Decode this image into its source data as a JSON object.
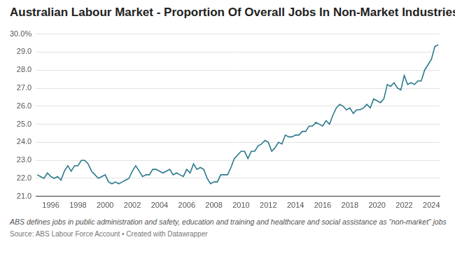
{
  "chart_data": {
    "type": "line",
    "title": "Australian Labour Market - Proportion Of Overall Jobs In Non-Market Industries",
    "note": "ABS defines jobs in public administration and safety, education and training and healthcare and social assistance as “non-market” jobs",
    "source": "Source: ABS Labour Force Account • Created with Datawrapper",
    "x": [
      1995.0,
      1995.25,
      1995.5,
      1995.75,
      1996.0,
      1996.25,
      1996.5,
      1996.75,
      1997.0,
      1997.25,
      1997.5,
      1997.75,
      1998.0,
      1998.25,
      1998.5,
      1998.75,
      1999.0,
      1999.25,
      1999.5,
      1999.75,
      2000.0,
      2000.25,
      2000.5,
      2000.75,
      2001.0,
      2001.25,
      2001.5,
      2001.75,
      2002.0,
      2002.25,
      2002.5,
      2002.75,
      2003.0,
      2003.25,
      2003.5,
      2003.75,
      2004.0,
      2004.25,
      2004.5,
      2004.75,
      2005.0,
      2005.25,
      2005.5,
      2005.75,
      2006.0,
      2006.25,
      2006.5,
      2006.75,
      2007.0,
      2007.25,
      2007.5,
      2007.75,
      2008.0,
      2008.25,
      2008.5,
      2008.75,
      2009.0,
      2009.25,
      2009.5,
      2009.75,
      2010.0,
      2010.25,
      2010.5,
      2010.75,
      2011.0,
      2011.25,
      2011.5,
      2011.75,
      2012.0,
      2012.25,
      2012.5,
      2012.75,
      2013.0,
      2013.25,
      2013.5,
      2013.75,
      2014.0,
      2014.25,
      2014.5,
      2014.75,
      2015.0,
      2015.25,
      2015.5,
      2015.75,
      2016.0,
      2016.25,
      2016.5,
      2016.75,
      2017.0,
      2017.25,
      2017.5,
      2017.75,
      2018.0,
      2018.25,
      2018.5,
      2018.75,
      2019.0,
      2019.25,
      2019.5,
      2019.75,
      2020.0,
      2020.25,
      2020.5,
      2020.75,
      2021.0,
      2021.25,
      2021.5,
      2021.75,
      2022.0,
      2022.25,
      2022.5,
      2022.75,
      2023.0,
      2023.25,
      2023.5,
      2023.75,
      2024.0,
      2024.25,
      2024.5
    ],
    "values": [
      22.2,
      22.1,
      22.0,
      22.3,
      22.1,
      22.0,
      22.1,
      21.9,
      22.4,
      22.7,
      22.4,
      22.7,
      22.7,
      23.0,
      23.0,
      22.8,
      22.4,
      22.2,
      22.0,
      22.1,
      22.2,
      21.8,
      21.7,
      21.8,
      21.7,
      21.8,
      21.9,
      22.0,
      22.4,
      22.7,
      22.4,
      22.1,
      22.2,
      22.2,
      22.5,
      22.5,
      22.4,
      22.3,
      22.4,
      22.5,
      22.2,
      22.3,
      22.2,
      22.1,
      22.5,
      22.3,
      22.8,
      22.5,
      22.6,
      22.5,
      22.0,
      21.7,
      21.8,
      21.8,
      22.2,
      22.2,
      22.2,
      22.6,
      23.1,
      23.3,
      23.5,
      23.5,
      23.1,
      23.5,
      23.5,
      23.8,
      23.9,
      24.1,
      24.0,
      23.5,
      23.7,
      24.0,
      23.9,
      24.4,
      24.3,
      24.3,
      24.4,
      24.4,
      24.6,
      24.6,
      24.9,
      24.9,
      25.1,
      25.0,
      24.9,
      25.2,
      25.0,
      25.5,
      25.9,
      26.1,
      26.0,
      25.8,
      25.9,
      25.6,
      25.8,
      25.8,
      25.9,
      26.1,
      25.9,
      26.4,
      26.3,
      26.2,
      26.4,
      27.2,
      27.1,
      27.3,
      27.0,
      26.9,
      27.7,
      27.2,
      27.3,
      27.2,
      27.4,
      27.4,
      28.0,
      28.3,
      28.6,
      29.3,
      29.4
    ],
    "color": "#2b7a8c",
    "xlim": [
      1994.9,
      2024.6
    ],
    "xticks": [
      1996,
      1998,
      2000,
      2002,
      2004,
      2006,
      2008,
      2010,
      2012,
      2014,
      2016,
      2018,
      2020,
      2022,
      2024
    ],
    "ylim": [
      21,
      30
    ],
    "yticks": [
      {
        "value": 21,
        "label": "21.0"
      },
      {
        "value": 22,
        "label": "22.0"
      },
      {
        "value": 23,
        "label": "23.0"
      },
      {
        "value": 24,
        "label": "24.0"
      },
      {
        "value": 25,
        "label": "25.0"
      },
      {
        "value": 26,
        "label": "26.0"
      },
      {
        "value": 27,
        "label": "27.0"
      },
      {
        "value": 28,
        "label": "28.0"
      },
      {
        "value": 29,
        "label": "29.0"
      },
      {
        "value": 30,
        "label": "30.0%"
      }
    ],
    "grid": true
  }
}
